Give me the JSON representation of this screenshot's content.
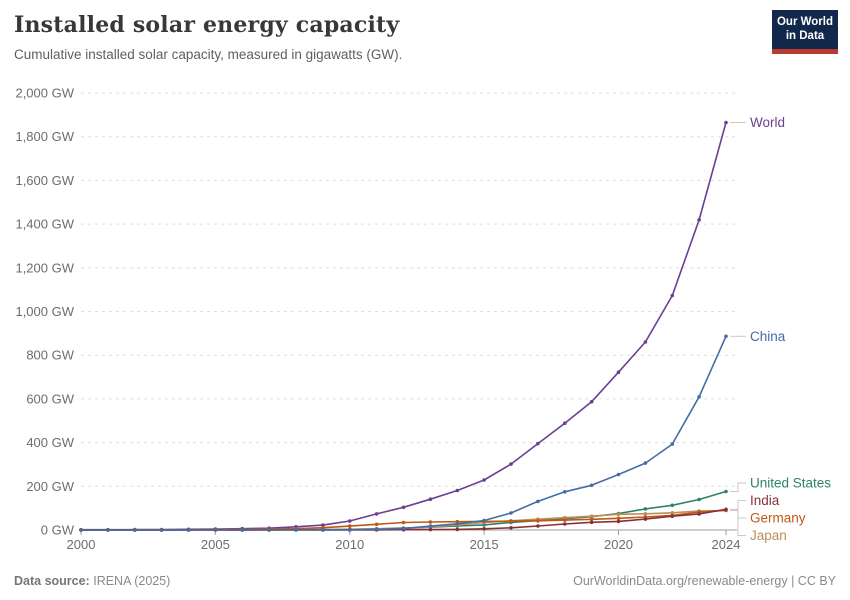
{
  "header": {
    "title": "Installed solar energy capacity",
    "subtitle": "Cumulative installed solar capacity, measured in gigawatts (GW)."
  },
  "logo": {
    "line1": "Our World",
    "line2": "in Data"
  },
  "footer": {
    "source_label": "Data source:",
    "source": "IRENA (2025)",
    "url": "OurWorldinData.org/renewable-energy",
    "separator": " | ",
    "license": "CC BY"
  },
  "chart_data": {
    "type": "line",
    "title": "Installed solar energy capacity",
    "xlabel": "",
    "ylabel": "",
    "xlim": [
      2000,
      2024
    ],
    "ylim": [
      0,
      2000
    ],
    "grid": "horizontal-dashed",
    "legend_position": "right-end-labels",
    "x": [
      2000,
      2001,
      2002,
      2003,
      2004,
      2005,
      2006,
      2007,
      2008,
      2009,
      2010,
      2011,
      2012,
      2013,
      2014,
      2015,
      2016,
      2017,
      2018,
      2019,
      2020,
      2021,
      2022,
      2023,
      2024
    ],
    "x_ticks": [
      {
        "year": 2000,
        "label": "2000"
      },
      {
        "year": 2005,
        "label": "2005"
      },
      {
        "year": 2010,
        "label": "2010"
      },
      {
        "year": 2015,
        "label": "2015"
      },
      {
        "year": 2020,
        "label": "2020"
      },
      {
        "year": 2024,
        "label": "2024"
      }
    ],
    "y_ticks": [
      {
        "value": 0,
        "label": "0 GW"
      },
      {
        "value": 200,
        "label": "200 GW"
      },
      {
        "value": 400,
        "label": "400 GW"
      },
      {
        "value": 600,
        "label": "600 GW"
      },
      {
        "value": 800,
        "label": "800 GW"
      },
      {
        "value": 1000,
        "label": "1,000 GW"
      },
      {
        "value": 1200,
        "label": "1,200 GW"
      },
      {
        "value": 1400,
        "label": "1,400 GW"
      },
      {
        "value": 1600,
        "label": "1,600 GW"
      },
      {
        "value": 1800,
        "label": "1,800 GW"
      },
      {
        "value": 2000,
        "label": "2,000 GW"
      }
    ],
    "series": [
      {
        "name": "World",
        "color": "#6D3E91",
        "values": [
          1.2,
          1.5,
          1.8,
          2.3,
          3.4,
          4.6,
          5.9,
          8.4,
          14.7,
          22.6,
          41.4,
          73.7,
          103.8,
          141.0,
          180.8,
          228.7,
          301.6,
          395.6,
          488.8,
          586.7,
          722.4,
          860.3,
          1073.2,
          1419.0,
          1865.2
        ]
      },
      {
        "name": "China",
        "color": "#456CA5",
        "values": [
          0.03,
          0.05,
          0.06,
          0.08,
          0.08,
          0.14,
          0.16,
          0.2,
          0.25,
          0.37,
          1.0,
          3.1,
          6.7,
          17.8,
          28.4,
          43.5,
          77.8,
          130.8,
          175.0,
          204.7,
          253.8,
          306.4,
          393.0,
          609.5,
          886.7
        ]
      },
      {
        "name": "United States",
        "color": "#2C8465",
        "values": [
          0.14,
          0.17,
          0.21,
          0.28,
          0.38,
          0.48,
          0.62,
          0.83,
          1.2,
          1.6,
          2.9,
          5.6,
          8.6,
          13.0,
          18.3,
          23.4,
          34.7,
          43.1,
          51.5,
          60.7,
          75.6,
          96.4,
          113.0,
          139.5,
          176.2
        ]
      },
      {
        "name": "India",
        "color": "#883039",
        "values": [
          0.02,
          0.02,
          0.02,
          0.03,
          0.03,
          0.03,
          0.03,
          0.04,
          0.06,
          0.07,
          0.1,
          0.57,
          1.2,
          1.7,
          2.6,
          5.6,
          9.9,
          18.2,
          27.3,
          35.1,
          39.2,
          49.7,
          63.1,
          73.1,
          94.8
        ]
      },
      {
        "name": "Germany",
        "color": "#BE5915",
        "values": [
          0.11,
          0.18,
          0.3,
          0.44,
          1.1,
          2.1,
          2.9,
          4.2,
          6.1,
          10.6,
          18.0,
          25.9,
          34.1,
          36.7,
          37.9,
          39.2,
          40.7,
          42.3,
          45.2,
          48.9,
          53.7,
          59.4,
          66.6,
          81.7,
          90.1
        ]
      },
      {
        "name": "Japan",
        "color": "#BC8E5A",
        "values": [
          0.33,
          0.45,
          0.64,
          0.86,
          1.13,
          1.42,
          1.71,
          1.92,
          2.14,
          2.63,
          3.62,
          4.9,
          6.63,
          13.6,
          23.3,
          34.2,
          42.0,
          49.5,
          56.2,
          63.2,
          71.9,
          74.2,
          78.8,
          87.1,
          89.1
        ]
      }
    ]
  }
}
